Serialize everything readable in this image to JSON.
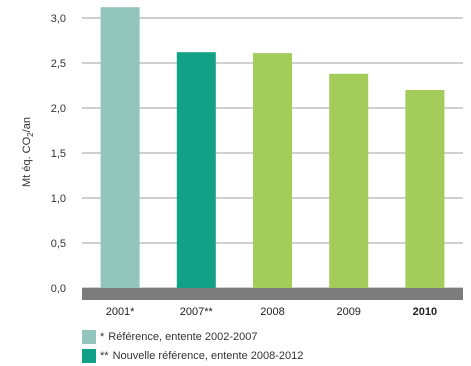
{
  "chart_data": {
    "type": "bar",
    "ylabel_parts": [
      "Mt éq. CO",
      "2",
      "/an"
    ],
    "ylim": [
      0,
      3.0
    ],
    "yticks": [
      "0,0",
      "0,5",
      "1,0",
      "1,5",
      "2,0",
      "2,5",
      "3,0"
    ],
    "ytick_values": [
      0,
      0.5,
      1.0,
      1.5,
      2.0,
      2.5,
      3.0
    ],
    "grid": true,
    "categories": [
      "2001*",
      "2007**",
      "2008",
      "2009",
      "2010"
    ],
    "bold_categories": [
      "2010"
    ],
    "values": [
      3.12,
      2.62,
      2.61,
      2.38,
      2.2
    ],
    "bar_colors": [
      "#92c5bb",
      "#12a086",
      "#a3cc5a",
      "#a3cc5a",
      "#a3cc5a"
    ],
    "axis_band_color": "#7c7c7c",
    "legend": [
      {
        "marker": "*",
        "label": "Référence, entente 2002-2007",
        "color": "#92c5bb"
      },
      {
        "marker": "**",
        "label": "Nouvelle référence, entente 2008-2012",
        "color": "#12a086"
      }
    ]
  }
}
